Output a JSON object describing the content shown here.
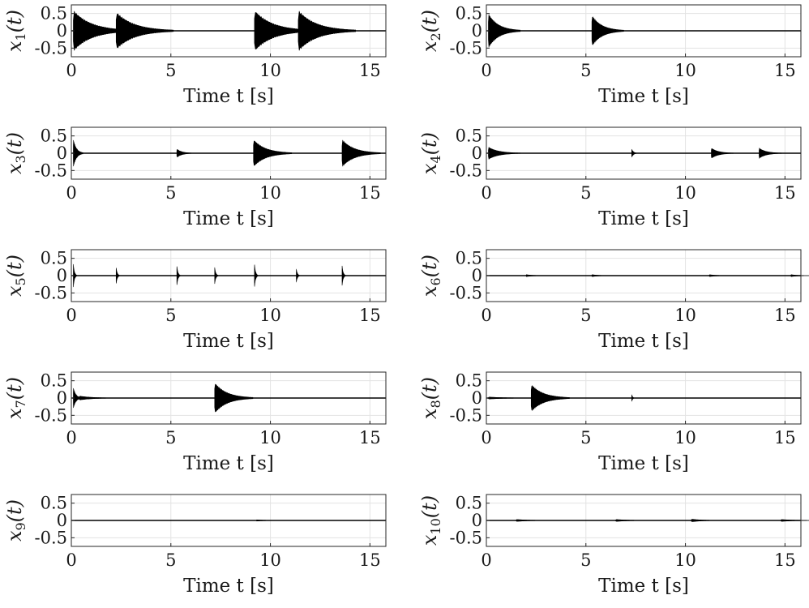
{
  "chart_data": [
    {
      "type": "line",
      "ylabel_sym": "x",
      "ylabel_sub": "1",
      "ylabel_arg": "(t)",
      "xlabel": "Time t [s]",
      "xlim": [
        0,
        15.8
      ],
      "ylim": [
        -0.75,
        0.75
      ],
      "xticks": [
        0,
        5,
        10,
        15
      ],
      "yticks": [
        0.5,
        0,
        -0.5
      ],
      "ytick_labels": [
        "0.5",
        "0",
        "-0.5"
      ],
      "grid": true,
      "bursts": [
        {
          "t": 0.1,
          "amp": 0.6,
          "decay": 0.9
        },
        {
          "t": 2.25,
          "amp": 0.55,
          "decay": 0.9
        },
        {
          "t": 9.2,
          "amp": 0.6,
          "decay": 0.9
        },
        {
          "t": 11.4,
          "amp": 0.6,
          "decay": 0.9
        }
      ]
    },
    {
      "type": "line",
      "ylabel_sym": "x",
      "ylabel_sub": "2",
      "ylabel_arg": "(t)",
      "xlabel": "Time t [s]",
      "xlim": [
        0,
        15.8
      ],
      "ylim": [
        -0.75,
        0.75
      ],
      "xticks": [
        0,
        5,
        10,
        15
      ],
      "yticks": [
        0.5,
        0,
        -0.5
      ],
      "ytick_labels": [
        "0.5",
        "0",
        "-0.5"
      ],
      "grid": true,
      "bursts": [
        {
          "t": 0.1,
          "amp": 0.5,
          "decay": 0.5
        },
        {
          "t": 5.3,
          "amp": 0.45,
          "decay": 0.5
        }
      ]
    },
    {
      "type": "line",
      "ylabel_sym": "x",
      "ylabel_sub": "3",
      "ylabel_arg": "(t)",
      "xlabel": "Time t [s]",
      "xlim": [
        0,
        15.8
      ],
      "ylim": [
        -0.75,
        0.75
      ],
      "xticks": [
        0,
        5,
        10,
        15
      ],
      "yticks": [
        0.5,
        0,
        -0.5
      ],
      "ytick_labels": [
        "0.5",
        "0",
        "-0.5"
      ],
      "grid": true,
      "bursts": [
        {
          "t": 0.1,
          "amp": 0.4,
          "decay": 0.15
        },
        {
          "t": 5.3,
          "amp": 0.12,
          "decay": 0.25
        },
        {
          "t": 9.15,
          "amp": 0.4,
          "decay": 0.6
        },
        {
          "t": 13.6,
          "amp": 0.4,
          "decay": 0.6
        }
      ]
    },
    {
      "type": "line",
      "ylabel_sym": "x",
      "ylabel_sub": "4",
      "ylabel_arg": "(t)",
      "xlabel": "Time t [s]",
      "xlim": [
        0,
        15.8
      ],
      "ylim": [
        -0.75,
        0.75
      ],
      "xticks": [
        0,
        5,
        10,
        15
      ],
      "yticks": [
        0.5,
        0,
        -0.5
      ],
      "ytick_labels": [
        "0.5",
        "0",
        "-0.5"
      ],
      "grid": true,
      "bursts": [
        {
          "t": 0.1,
          "amp": 0.18,
          "decay": 0.5
        },
        {
          "t": 7.3,
          "amp": 0.12,
          "decay": 0.08
        },
        {
          "t": 11.3,
          "amp": 0.15,
          "decay": 0.35
        },
        {
          "t": 13.7,
          "amp": 0.15,
          "decay": 0.35
        }
      ]
    },
    {
      "type": "line",
      "ylabel_sym": "x",
      "ylabel_sub": "5",
      "ylabel_arg": "(t)",
      "xlabel": "Time t [s]",
      "xlim": [
        0,
        15.8
      ],
      "ylim": [
        -0.75,
        0.75
      ],
      "xticks": [
        0,
        5,
        10,
        15
      ],
      "yticks": [
        0.5,
        0,
        -0.5
      ],
      "ytick_labels": [
        "0.5",
        "0",
        "-0.5"
      ],
      "grid": true,
      "bursts": [
        {
          "t": 0.1,
          "amp": 0.35,
          "decay": 0.05
        },
        {
          "t": 2.25,
          "amp": 0.25,
          "decay": 0.05
        },
        {
          "t": 5.3,
          "amp": 0.3,
          "decay": 0.05
        },
        {
          "t": 7.2,
          "amp": 0.25,
          "decay": 0.05
        },
        {
          "t": 9.2,
          "amp": 0.35,
          "decay": 0.05
        },
        {
          "t": 11.3,
          "amp": 0.2,
          "decay": 0.05
        },
        {
          "t": 13.6,
          "amp": 0.3,
          "decay": 0.05
        }
      ]
    },
    {
      "type": "line",
      "ylabel_sym": "x",
      "ylabel_sub": "6",
      "ylabel_arg": "(t)",
      "xlabel": "Time t [s]",
      "xlim": [
        0,
        15.8
      ],
      "ylim": [
        -0.75,
        0.75
      ],
      "xticks": [
        0,
        5,
        10,
        15
      ],
      "yticks": [
        0.5,
        0,
        -0.5
      ],
      "ytick_labels": [
        "0.5",
        "0",
        "-0.5"
      ],
      "grid": true,
      "bursts": [
        {
          "t": 2.0,
          "amp": 0.03,
          "decay": 0.3
        },
        {
          "t": 5.3,
          "amp": 0.03,
          "decay": 0.3
        },
        {
          "t": 11.2,
          "amp": 0.03,
          "decay": 0.3
        },
        {
          "t": 15.3,
          "amp": 0.03,
          "decay": 0.3
        }
      ]
    },
    {
      "type": "line",
      "ylabel_sym": "x",
      "ylabel_sub": "7",
      "ylabel_arg": "(t)",
      "xlabel": "Time t [s]",
      "xlim": [
        0,
        15.8
      ],
      "ylim": [
        -0.75,
        0.75
      ],
      "xticks": [
        0,
        5,
        10,
        15
      ],
      "yticks": [
        0.5,
        0,
        -0.5
      ],
      "ytick_labels": [
        "0.5",
        "0",
        "-0.5"
      ],
      "grid": true,
      "bursts": [
        {
          "t": 0.1,
          "amp": 0.3,
          "decay": 0.12
        },
        {
          "t": 0.4,
          "amp": 0.06,
          "decay": 0.6
        },
        {
          "t": 7.2,
          "amp": 0.45,
          "decay": 0.6
        }
      ]
    },
    {
      "type": "line",
      "ylabel_sym": "x",
      "ylabel_sub": "8",
      "ylabel_arg": "(t)",
      "xlabel": "Time t [s]",
      "xlim": [
        0,
        15.8
      ],
      "ylim": [
        -0.75,
        0.75
      ],
      "xticks": [
        0,
        5,
        10,
        15
      ],
      "yticks": [
        0.5,
        0,
        -0.5
      ],
      "ytick_labels": [
        "0.5",
        "0",
        "-0.5"
      ],
      "grid": true,
      "bursts": [
        {
          "t": 0.1,
          "amp": 0.03,
          "decay": 0.8
        },
        {
          "t": 2.25,
          "amp": 0.4,
          "decay": 0.6
        },
        {
          "t": 7.3,
          "amp": 0.1,
          "decay": 0.04
        }
      ]
    },
    {
      "type": "line",
      "ylabel_sym": "x",
      "ylabel_sub": "9",
      "ylabel_arg": "(t)",
      "xlabel": "Time t [s]",
      "xlim": [
        0,
        15.8
      ],
      "ylim": [
        -0.75,
        0.75
      ],
      "xticks": [
        0,
        5,
        10,
        15
      ],
      "yticks": [
        0.5,
        0,
        -0.5
      ],
      "ytick_labels": [
        "0.5",
        "0",
        "-0.5"
      ],
      "grid": true,
      "bursts": [
        {
          "t": 9.3,
          "amp": 0.02,
          "decay": 0.4
        }
      ]
    },
    {
      "type": "line",
      "ylabel_sym": "x",
      "ylabel_sub": "10",
      "ylabel_arg": "(t)",
      "xlabel": "Time t [s]",
      "xlim": [
        0,
        15.8
      ],
      "ylim": [
        -0.75,
        0.75
      ],
      "xticks": [
        0,
        5,
        10,
        15
      ],
      "yticks": [
        0.5,
        0,
        -0.5
      ],
      "ytick_labels": [
        "0.5",
        "0",
        "-0.5"
      ],
      "grid": true,
      "bursts": [
        {
          "t": 1.5,
          "amp": 0.03,
          "decay": 0.6
        },
        {
          "t": 6.5,
          "amp": 0.03,
          "decay": 0.6
        },
        {
          "t": 10.3,
          "amp": 0.04,
          "decay": 0.5
        },
        {
          "t": 14.8,
          "amp": 0.03,
          "decay": 0.6
        }
      ]
    }
  ]
}
